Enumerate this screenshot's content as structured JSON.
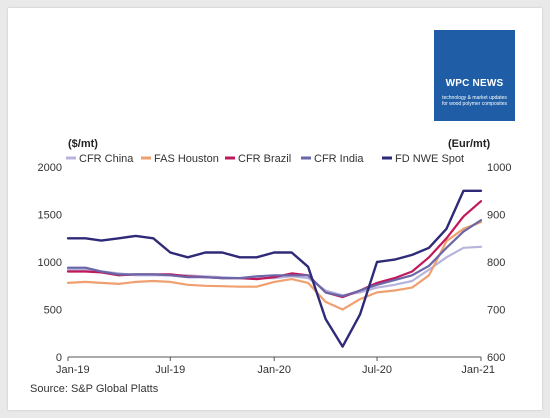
{
  "logo": {
    "title": "WPC NEWS",
    "tagline_1": "technology & market updates",
    "tagline_2": "for wood polymer composites"
  },
  "source": "Source: S&P Global Platts",
  "colors": {
    "background": "#e9e9e9",
    "logo": "#1f5ea6"
  },
  "chart_data": {
    "type": "line",
    "title": "",
    "ylabel": "($/mt)",
    "y2label": "(Eur/mt)",
    "xlabel": "",
    "ylim": [
      0,
      2000
    ],
    "y2lim": [
      600,
      1000
    ],
    "yticks": [
      "0",
      "500",
      "1000",
      "1500",
      "2000"
    ],
    "y2ticks": [
      "600",
      "700",
      "800",
      "900",
      "1000"
    ],
    "x_range": [
      "2019-01-01",
      "2021-01-01"
    ],
    "xticks": [
      {
        "date": "2019-01-01",
        "label": "Jan-19"
      },
      {
        "date": "2019-07-01",
        "label": "Jul-19"
      },
      {
        "date": "2020-01-01",
        "label": "Jan-20"
      },
      {
        "date": "2020-07-01",
        "label": "Jul-20"
      },
      {
        "date": "2021-01-01",
        "label": "Jan-21"
      }
    ],
    "legend_position": "top",
    "grid": false,
    "series": [
      {
        "name": "CFR China",
        "color": "#b7b4dc",
        "axis": "left",
        "points": [
          [
            "2019-01-01",
            920
          ],
          [
            "2019-02-01",
            920
          ],
          [
            "2019-03-01",
            900
          ],
          [
            "2019-04-01",
            880
          ],
          [
            "2019-05-01",
            860
          ],
          [
            "2019-06-01",
            860
          ],
          [
            "2019-07-01",
            860
          ],
          [
            "2019-08-01",
            860
          ],
          [
            "2019-09-01",
            850
          ],
          [
            "2019-10-01",
            840
          ],
          [
            "2019-11-01",
            830
          ],
          [
            "2019-12-01",
            830
          ],
          [
            "2020-01-01",
            830
          ],
          [
            "2020-02-01",
            850
          ],
          [
            "2020-03-01",
            830
          ],
          [
            "2020-04-01",
            700
          ],
          [
            "2020-05-01",
            650
          ],
          [
            "2020-06-01",
            680
          ],
          [
            "2020-07-01",
            730
          ],
          [
            "2020-08-01",
            760
          ],
          [
            "2020-09-01",
            800
          ],
          [
            "2020-10-01",
            920
          ],
          [
            "2020-11-01",
            1050
          ],
          [
            "2020-12-01",
            1150
          ],
          [
            "2021-01-01",
            1160
          ]
        ]
      },
      {
        "name": "FAS Houston",
        "color": "#f0a070",
        "axis": "left",
        "points": [
          [
            "2019-01-01",
            780
          ],
          [
            "2019-02-01",
            790
          ],
          [
            "2019-03-01",
            780
          ],
          [
            "2019-04-01",
            770
          ],
          [
            "2019-05-01",
            790
          ],
          [
            "2019-06-01",
            800
          ],
          [
            "2019-07-01",
            790
          ],
          [
            "2019-08-01",
            760
          ],
          [
            "2019-09-01",
            750
          ],
          [
            "2019-10-01",
            745
          ],
          [
            "2019-11-01",
            740
          ],
          [
            "2019-12-01",
            740
          ],
          [
            "2020-01-01",
            790
          ],
          [
            "2020-02-01",
            820
          ],
          [
            "2020-03-01",
            780
          ],
          [
            "2020-04-01",
            580
          ],
          [
            "2020-05-01",
            500
          ],
          [
            "2020-06-01",
            610
          ],
          [
            "2020-07-01",
            680
          ],
          [
            "2020-08-01",
            700
          ],
          [
            "2020-09-01",
            730
          ],
          [
            "2020-10-01",
            860
          ],
          [
            "2020-11-01",
            1220
          ],
          [
            "2020-12-01",
            1350
          ],
          [
            "2021-01-01",
            1420
          ]
        ]
      },
      {
        "name": "CFR Brazil",
        "color": "#c0185a",
        "axis": "left",
        "points": [
          [
            "2019-01-01",
            900
          ],
          [
            "2019-02-01",
            900
          ],
          [
            "2019-03-01",
            890
          ],
          [
            "2019-04-01",
            860
          ],
          [
            "2019-05-01",
            870
          ],
          [
            "2019-06-01",
            870
          ],
          [
            "2019-07-01",
            870
          ],
          [
            "2019-08-01",
            850
          ],
          [
            "2019-09-01",
            840
          ],
          [
            "2019-10-01",
            830
          ],
          [
            "2019-11-01",
            830
          ],
          [
            "2019-12-01",
            820
          ],
          [
            "2020-01-01",
            840
          ],
          [
            "2020-02-01",
            880
          ],
          [
            "2020-03-01",
            860
          ],
          [
            "2020-04-01",
            680
          ],
          [
            "2020-05-01",
            630
          ],
          [
            "2020-06-01",
            700
          ],
          [
            "2020-07-01",
            780
          ],
          [
            "2020-08-01",
            830
          ],
          [
            "2020-09-01",
            900
          ],
          [
            "2020-10-01",
            1050
          ],
          [
            "2020-11-01",
            1250
          ],
          [
            "2020-12-01",
            1480
          ],
          [
            "2021-01-01",
            1640
          ]
        ]
      },
      {
        "name": "CFR India",
        "color": "#6a66a8",
        "axis": "left",
        "points": [
          [
            "2019-01-01",
            940
          ],
          [
            "2019-02-01",
            940
          ],
          [
            "2019-03-01",
            900
          ],
          [
            "2019-04-01",
            870
          ],
          [
            "2019-05-01",
            870
          ],
          [
            "2019-06-01",
            870
          ],
          [
            "2019-07-01",
            860
          ],
          [
            "2019-08-01",
            840
          ],
          [
            "2019-09-01",
            840
          ],
          [
            "2019-10-01",
            830
          ],
          [
            "2019-11-01",
            830
          ],
          [
            "2019-12-01",
            850
          ],
          [
            "2020-01-01",
            860
          ],
          [
            "2020-02-01",
            860
          ],
          [
            "2020-03-01",
            860
          ],
          [
            "2020-04-01",
            680
          ],
          [
            "2020-05-01",
            640
          ],
          [
            "2020-06-01",
            700
          ],
          [
            "2020-07-01",
            760
          ],
          [
            "2020-08-01",
            810
          ],
          [
            "2020-09-01",
            860
          ],
          [
            "2020-10-01",
            960
          ],
          [
            "2020-11-01",
            1150
          ],
          [
            "2020-12-01",
            1320
          ],
          [
            "2021-01-01",
            1440
          ]
        ]
      },
      {
        "name": "FD NWE Spot",
        "color": "#2e2a78",
        "axis": "right",
        "points": [
          [
            "2019-01-01",
            850
          ],
          [
            "2019-02-01",
            850
          ],
          [
            "2019-03-01",
            845
          ],
          [
            "2019-04-01",
            850
          ],
          [
            "2019-05-01",
            855
          ],
          [
            "2019-06-01",
            850
          ],
          [
            "2019-07-01",
            820
          ],
          [
            "2019-08-01",
            810
          ],
          [
            "2019-09-01",
            820
          ],
          [
            "2019-10-01",
            820
          ],
          [
            "2019-11-01",
            810
          ],
          [
            "2019-12-01",
            810
          ],
          [
            "2020-01-01",
            820
          ],
          [
            "2020-02-01",
            820
          ],
          [
            "2020-03-01",
            790
          ],
          [
            "2020-04-01",
            680
          ],
          [
            "2020-05-01",
            622
          ],
          [
            "2020-06-01",
            690
          ],
          [
            "2020-07-01",
            800
          ],
          [
            "2020-08-01",
            805
          ],
          [
            "2020-09-01",
            815
          ],
          [
            "2020-10-01",
            830
          ],
          [
            "2020-11-01",
            870
          ],
          [
            "2020-12-01",
            950
          ],
          [
            "2021-01-01",
            950
          ]
        ]
      }
    ]
  }
}
